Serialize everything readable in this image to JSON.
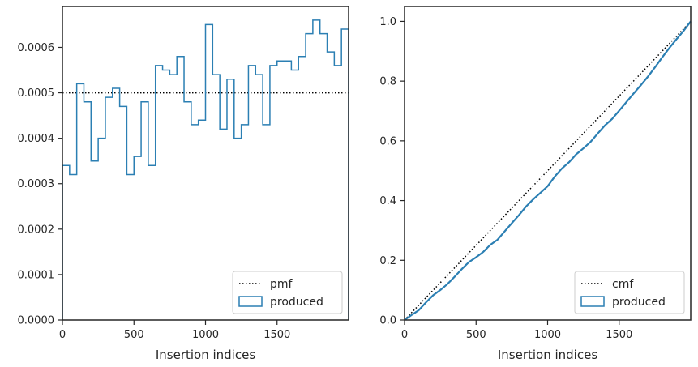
{
  "chart_data": [
    {
      "type": "step-histogram",
      "xlabel": "Insertion indices",
      "xlim": [
        0,
        2000
      ],
      "ylim": [
        0,
        0.00069
      ],
      "xticks": [
        "0",
        "500",
        "1000",
        "1500"
      ],
      "yticks": [
        "0.0000",
        "0.0001",
        "0.0002",
        "0.0003",
        "0.0004",
        "0.0005",
        "0.0006"
      ],
      "bin_width": 50,
      "series": [
        {
          "name": "produced",
          "color": "#2b7fb3",
          "values": [
            0.00034,
            0.00032,
            0.00052,
            0.00048,
            0.00035,
            0.0004,
            0.00049,
            0.00051,
            0.00047,
            0.00032,
            0.00036,
            0.00048,
            0.00034,
            0.00056,
            0.00055,
            0.00054,
            0.00058,
            0.00048,
            0.00043,
            0.00044,
            0.00065,
            0.00054,
            0.00042,
            0.00053,
            0.0004,
            0.00043,
            0.00056,
            0.00054,
            0.00043,
            0.00056,
            0.00057,
            0.00057,
            0.00055,
            0.00058,
            0.00063,
            0.00066,
            0.00063,
            0.00059,
            0.00056,
            0.00064
          ]
        },
        {
          "name": "pmf",
          "color": "#000000",
          "style": "dotted",
          "values": [
            0.0005
          ]
        }
      ],
      "legend_position": "lower right"
    },
    {
      "type": "line",
      "xlabel": "Insertion indices",
      "xlim": [
        0,
        2000
      ],
      "ylim": [
        0,
        1.05
      ],
      "xticks": [
        "0",
        "500",
        "1000",
        "1500"
      ],
      "yticks": [
        "0.0",
        "0.2",
        "0.4",
        "0.6",
        "0.8",
        "1.0"
      ],
      "series": [
        {
          "name": "cmf",
          "color": "#000000",
          "style": "dotted",
          "x": [
            0,
            2000
          ],
          "y": [
            0,
            1.0
          ]
        },
        {
          "name": "produced",
          "color": "#2b7fb3",
          "cumulative_of": "first chart produced values"
        }
      ],
      "legend_position": "lower right"
    }
  ]
}
